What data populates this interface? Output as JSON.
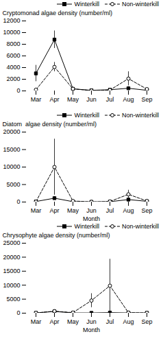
{
  "chart_data": [
    {
      "type": "line",
      "categories": [
        "Mar",
        "Apr",
        "May",
        "Jun",
        "Jul",
        "Aug",
        "Sep"
      ],
      "series": [
        {
          "name": "Winterkill",
          "color": "#000000",
          "marker": "square",
          "line_style": "solid",
          "values": [
            3000,
            8800,
            350,
            100,
            200,
            450,
            100
          ],
          "errors": [
            1400,
            1500,
            150,
            80,
            100,
            300,
            80
          ]
        },
        {
          "name": "Non-winterkill",
          "color": "#000000",
          "marker": "circle",
          "line_style": "dashed",
          "values": [
            200,
            4100,
            350,
            50,
            150,
            2100,
            300
          ],
          "errors": [
            200,
            800,
            200,
            30,
            100,
            1200,
            150
          ]
        }
      ],
      "ylabel": "Cryptomonad algae density (number/ml)",
      "ylim": [
        0,
        12000
      ],
      "yticks": [
        0,
        2000,
        4000,
        6000,
        8000,
        10000,
        12000
      ],
      "legend": "upper right",
      "grid": false
    },
    {
      "type": "line",
      "categories": [
        "Mar",
        "Apr",
        "May",
        "Jun",
        "Jul",
        "Aug",
        "Sep"
      ],
      "series": [
        {
          "name": "Winterkill",
          "color": "#000000",
          "marker": "square",
          "line_style": "solid",
          "values": [
            150,
            1100,
            100,
            50,
            100,
            700,
            200
          ],
          "errors": [
            100,
            500,
            80,
            30,
            50,
            400,
            150
          ]
        },
        {
          "name": "Non-winterkill",
          "color": "#000000",
          "marker": "circle",
          "line_style": "dashed",
          "values": [
            100,
            10000,
            300,
            50,
            150,
            2200,
            300
          ],
          "errors": [
            50,
            8000,
            200,
            30,
            100,
            1200,
            150
          ]
        }
      ],
      "xlabel": "Month",
      "ylabel": "Diatom  algae density (number/ml)",
      "ylim": [
        0,
        20000
      ],
      "yticks": [
        0,
        5000,
        10000,
        15000,
        20000
      ],
      "legend": "upper right",
      "grid": false
    },
    {
      "type": "line",
      "categories": [
        "Mar",
        "Apr",
        "May",
        "Jun",
        "Jul",
        "Aug",
        "Sep"
      ],
      "series": [
        {
          "name": "Winterkill",
          "color": "#000000",
          "marker": "square",
          "line_style": "solid",
          "values": [
            100,
            600,
            100,
            100,
            200,
            100,
            100
          ],
          "errors": [
            60,
            350,
            80,
            60,
            120,
            70,
            50
          ]
        },
        {
          "name": "Non-winterkill",
          "color": "#000000",
          "marker": "circle",
          "line_style": "dashed",
          "values": [
            100,
            700,
            200,
            4500,
            9800,
            200,
            100
          ],
          "errors": [
            50,
            300,
            150,
            2500,
            9500,
            150,
            50
          ]
        }
      ],
      "xlabel": "Month",
      "ylabel": "Chrysophyte algae density (number/ml)",
      "ylim": [
        0,
        25000
      ],
      "yticks": [
        0,
        5000,
        10000,
        15000,
        20000,
        25000
      ],
      "legend": "upper right",
      "grid": false
    }
  ]
}
